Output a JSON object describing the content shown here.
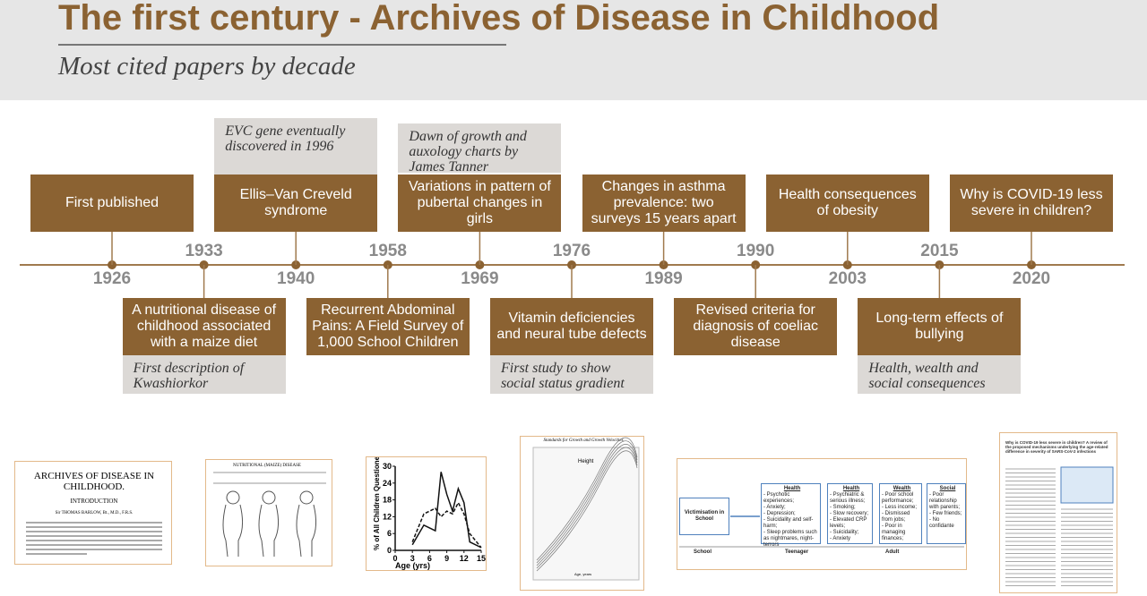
{
  "header": {
    "title": "The first century - Archives of Disease in Childhood",
    "subtitle": "Most cited papers by decade"
  },
  "timeline": {
    "events": [
      {
        "year": "1926",
        "label": "First published"
      },
      {
        "year": "1933",
        "label": "A nutritional disease of childhood associated with a maize diet",
        "note": "First description of Kwashiorkor"
      },
      {
        "year": "1940",
        "label": "Ellis–Van Creveld syndrome",
        "note": "EVC gene eventually discovered in 1996"
      },
      {
        "year": "1958",
        "label": "Recurrent Abdominal Pains: A Field Survey of 1,000 School Children"
      },
      {
        "year": "1969",
        "label": "Variations in pattern of pubertal changes in girls",
        "note": "Dawn of growth and auxology charts by James Tanner"
      },
      {
        "year": "1976",
        "label": "Vitamin deficiencies and neural tube defects",
        "note": "First study to show social status gradient"
      },
      {
        "year": "1989",
        "label": "Changes in asthma prevalence: two surveys 15 years apart"
      },
      {
        "year": "1990",
        "label": "Revised criteria for diagnosis of coeliac disease"
      },
      {
        "year": "2003",
        "label": "Health consequences of obesity"
      },
      {
        "year": "2015",
        "label": "Long-term effects of bullying",
        "note": "Health, wealth and social consequences"
      },
      {
        "year": "2020",
        "label": "Why is COVID-19 less severe in children?"
      }
    ]
  },
  "thumbnails": {
    "archives": {
      "title": "ARCHIVES OF DISEASE IN CHILDHOOD.",
      "section": "INTRODUCTION",
      "author": "Sir THOMAS BARLOW, Bt., M.D., F.R.S."
    },
    "maize": {
      "heading": "NUTRITIONAL (MAIZE) DISEASE"
    },
    "chart": {
      "type": "line",
      "ylabel": "% of All Children Questioned",
      "xlabel": "Age (yrs)",
      "x": [
        3,
        5,
        7,
        8,
        9,
        10,
        11,
        12,
        13,
        15
      ],
      "xlim": [
        0,
        15
      ],
      "xticks": [
        0,
        3,
        6,
        9,
        12,
        15
      ],
      "ylim": [
        0,
        30
      ],
      "yticks": [
        0,
        6,
        12,
        18,
        24,
        30
      ],
      "series": [
        {
          "color": "#111111",
          "dash": false,
          "values": [
            2,
            9,
            7,
            28,
            20,
            14,
            22,
            17,
            3,
            1
          ]
        },
        {
          "color": "#111111",
          "dash": true,
          "values": [
            3,
            13,
            15,
            12,
            14,
            13,
            17,
            13,
            6,
            1
          ]
        }
      ]
    },
    "growth": {
      "title": "Standards for Growth and Growth Velocities",
      "curve": "Height",
      "xlabel": "Age, years"
    },
    "bullying": {
      "start": "Victimisation in School",
      "boxes": [
        {
          "title": "Health",
          "items": [
            "- Psychotic experiences;",
            "- Anxiety;",
            "- Depression;",
            "- Suicidality and self-harm;",
            "- Sleep problems such as nightmares, night-terrors"
          ]
        },
        {
          "title": "Health",
          "items": [
            "- Psychiatric & serious illness;",
            "- Smoking;",
            "- Slow recovery;",
            "- Elevated CRP levels;",
            "- Suicidality;",
            "- Anxiety"
          ]
        },
        {
          "title": "Wealth",
          "items": [
            "- Poor school performance;",
            "- Less income;",
            "- Dismissed from jobs;",
            "- Poor in managing finances;"
          ]
        },
        {
          "title": "Social",
          "items": [
            "- Poor relationship with parents;",
            "- Few friends;",
            "- No confidante"
          ]
        }
      ],
      "stages": [
        "School",
        "Teenager",
        "Adult"
      ]
    },
    "covid": {
      "title": "Why is COVID-19 less severe in children? A review of the proposed mechanisms underlying the age-related difference in severity of SARS-CoV-2 infections"
    }
  }
}
